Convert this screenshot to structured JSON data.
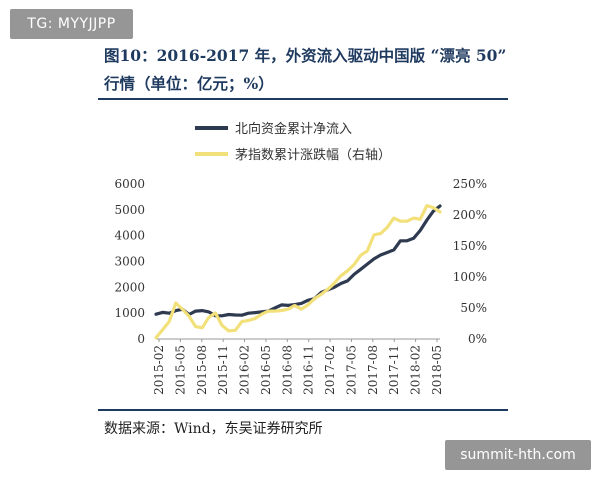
{
  "watermark_top": "TG: MYYJJPP",
  "watermark_bottom": "summit-hth.com",
  "title_line1": "图10：2016-2017 年，外资流入驱动中国版 “漂亮 50”",
  "title_line2": "行情（单位：亿元；%）",
  "source": "数据来源：Wind，东吴证券研究所",
  "colors": {
    "northbound": "#2e3a4f",
    "index": "#f2e07a",
    "title": "#1f3a5f"
  },
  "chart_data": {
    "type": "line",
    "x_tick_labels": [
      "2015-02",
      "2015-05",
      "2015-08",
      "2015-11",
      "2016-02",
      "2016-05",
      "2016-08",
      "2016-11",
      "2017-02",
      "2017-05",
      "2017-08",
      "2017-11",
      "2018-02",
      "2018-05"
    ],
    "left_axis": {
      "ylim": [
        0,
        6000
      ],
      "ticks": [
        "0",
        "1000",
        "2000",
        "3000",
        "4000",
        "5000",
        "6000"
      ]
    },
    "right_axis": {
      "ylim": [
        0,
        250
      ],
      "ticks": [
        "0%",
        "50%",
        "100%",
        "150%",
        "200%",
        "250%"
      ]
    },
    "grid": false,
    "legend": "top",
    "series": [
      {
        "name": "北向资金累计净流入",
        "axis": "left",
        "color": "#2e3a4f",
        "x": [
          0,
          1,
          2,
          3,
          4,
          5,
          6,
          7,
          8,
          9,
          10,
          11,
          12,
          13,
          14,
          15,
          16,
          17,
          18,
          19,
          20,
          21,
          22,
          23,
          24,
          25,
          26,
          27,
          28,
          29,
          30,
          31,
          32,
          33,
          34,
          35,
          36,
          37,
          38,
          39,
          40,
          41,
          42,
          43
        ],
        "values": [
          960,
          1030,
          1000,
          1100,
          1150,
          950,
          1080,
          1100,
          1050,
          900,
          900,
          950,
          930,
          920,
          1000,
          1020,
          1050,
          1080,
          1200,
          1320,
          1300,
          1330,
          1380,
          1500,
          1560,
          1800,
          1900,
          2000,
          2150,
          2250,
          2500,
          2700,
          2900,
          3100,
          3250,
          3350,
          3450,
          3800,
          3800,
          3900,
          4200,
          4600,
          4950,
          5150
        ]
      },
      {
        "name": "茅指数累计涨跌幅（右轴）",
        "axis": "right",
        "color": "#f2e07a",
        "x": [
          0,
          1,
          2,
          3,
          4,
          5,
          6,
          7,
          8,
          9,
          10,
          11,
          12,
          13,
          14,
          15,
          16,
          17,
          18,
          19,
          20,
          21,
          22,
          23,
          24,
          25,
          26,
          27,
          28,
          29,
          30,
          31,
          32,
          33,
          34,
          35,
          36,
          37,
          38,
          39,
          40,
          41,
          42,
          43
        ],
        "values": [
          2,
          15,
          28,
          58,
          48,
          37,
          20,
          18,
          35,
          42,
          22,
          13,
          14,
          28,
          30,
          33,
          40,
          45,
          45,
          46,
          48,
          54,
          48,
          55,
          65,
          72,
          80,
          90,
          102,
          110,
          120,
          135,
          142,
          168,
          170,
          180,
          195,
          190,
          190,
          195,
          193,
          215,
          212,
          205
        ]
      }
    ]
  }
}
